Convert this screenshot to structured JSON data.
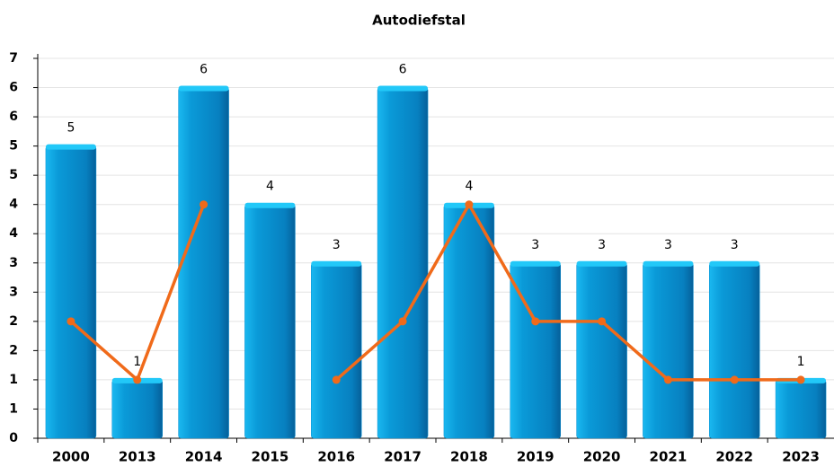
{
  "chart_data": {
    "type": "bar",
    "title": "Autodiefstal",
    "categories": [
      "2000",
      "2013",
      "2014",
      "2015",
      "2016",
      "2017",
      "2018",
      "2019",
      "2020",
      "2021",
      "2022",
      "2023"
    ],
    "series": [
      {
        "color": "#0a8fd0",
        "values": [
          5,
          1,
          6,
          4,
          3,
          6,
          4,
          3,
          3,
          3,
          3,
          1
        ]
      },
      {
        "type": "line",
        "color": "#f06a1a",
        "values": [
          2,
          1,
          4,
          null,
          1,
          2,
          4,
          2,
          2,
          1,
          1,
          1
        ]
      }
    ],
    "ylim": [
      0,
      6.5
    ],
    "yticks": [
      0,
      {
        "value": 0.5,
        "label": "1"
      },
      1,
      {
        "value": 1.5,
        "label": "2"
      },
      2,
      {
        "value": 2.5,
        "label": "3"
      },
      3,
      {
        "value": 3.5,
        "label": "4"
      },
      4,
      {
        "value": 4.5,
        "label": "5"
      },
      5,
      {
        "value": 5.5,
        "label": "6"
      },
      6,
      {
        "value": 6.5,
        "label": "7"
      }
    ],
    "grid": true,
    "data_labels": true
  }
}
